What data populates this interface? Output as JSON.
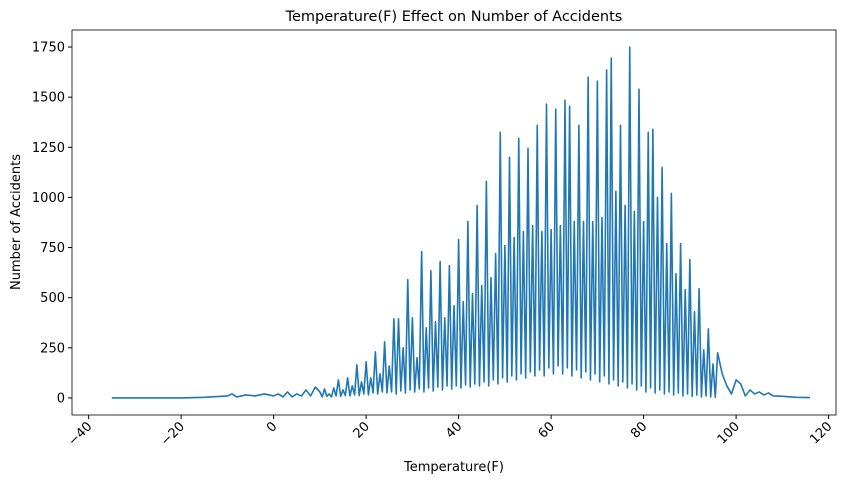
{
  "chart_data": {
    "type": "line",
    "title": "Temperature(F) Effect on Number of Accidents",
    "x_label": "Temperature(F)",
    "y_label": "Number of Accidents",
    "color": "#1f77b4",
    "xlim": [
      -43.6,
      121.6
    ],
    "ylim": [
      -85,
      1835
    ],
    "xticks": [
      {
        "value": -40,
        "label": "−40"
      },
      {
        "value": -20,
        "label": "−20"
      },
      0,
      20,
      40,
      60,
      80,
      100,
      120
    ],
    "yticks": [
      0,
      250,
      500,
      750,
      1000,
      1250,
      1500,
      1750
    ],
    "x": [
      -35,
      -20,
      -15,
      -10,
      -9,
      -8,
      -6,
      -4,
      -2,
      0,
      1,
      2,
      3,
      4,
      5,
      6,
      7,
      8,
      9,
      10,
      10.5,
      11,
      11.5,
      12,
      12.5,
      13,
      13.5,
      14,
      14.5,
      15,
      15.5,
      16,
      16.5,
      17,
      17.5,
      18,
      18.5,
      19,
      19.5,
      20,
      20.5,
      21,
      21.5,
      22,
      22.5,
      23,
      23.5,
      24,
      24.5,
      25,
      25.5,
      26,
      26.5,
      27,
      27.5,
      28,
      28.5,
      29,
      29.5,
      30,
      30.5,
      31,
      31.5,
      32,
      32.5,
      33,
      33.5,
      34,
      34.5,
      35,
      35.5,
      36,
      36.5,
      37,
      37.5,
      38,
      38.5,
      39,
      39.5,
      40,
      40.5,
      41,
      41.5,
      42,
      42.5,
      43,
      43.5,
      44,
      44.5,
      45,
      45.5,
      46,
      46.5,
      47,
      47.5,
      48,
      48.5,
      49,
      49.5,
      50,
      50.5,
      51,
      51.5,
      52,
      52.5,
      53,
      53.5,
      54,
      54.5,
      55,
      55.5,
      56,
      56.5,
      57,
      57.5,
      58,
      58.5,
      59,
      59.5,
      60,
      60.5,
      61,
      61.5,
      62,
      62.5,
      63,
      63.5,
      64,
      64.5,
      65,
      65.5,
      66,
      66.5,
      67,
      67.5,
      68,
      68.5,
      69,
      69.5,
      70,
      70.5,
      71,
      71.5,
      72,
      72.5,
      73,
      73.5,
      74,
      74.5,
      75,
      75.5,
      76,
      76.5,
      77,
      77.5,
      78,
      78.5,
      79,
      79.5,
      80,
      80.5,
      81,
      81.5,
      82,
      82.5,
      83,
      83.5,
      84,
      84.5,
      85,
      85.5,
      86,
      86.5,
      87,
      87.5,
      88,
      88.5,
      89,
      89.5,
      90,
      90.5,
      91,
      91.5,
      92,
      92.5,
      93,
      93.5,
      94,
      94.5,
      95,
      95.5,
      96,
      97,
      98,
      99,
      100,
      101,
      102,
      103,
      104,
      105,
      106,
      107,
      108,
      110,
      113,
      116
    ],
    "values": [
      0,
      0,
      3,
      10,
      20,
      5,
      15,
      10,
      20,
      10,
      20,
      5,
      30,
      5,
      20,
      10,
      40,
      10,
      55,
      30,
      5,
      45,
      8,
      20,
      5,
      50,
      10,
      90,
      8,
      40,
      12,
      100,
      10,
      60,
      15,
      165,
      12,
      80,
      20,
      180,
      15,
      100,
      25,
      230,
      20,
      120,
      30,
      280,
      25,
      160,
      30,
      395,
      20,
      395,
      35,
      250,
      25,
      590,
      40,
      400,
      30,
      200,
      45,
      730,
      30,
      350,
      50,
      635,
      35,
      380,
      55,
      680,
      40,
      400,
      60,
      660,
      45,
      460,
      60,
      790,
      50,
      480,
      65,
      880,
      55,
      520,
      70,
      960,
      60,
      560,
      80,
      1080,
      60,
      600,
      90,
      720,
      70,
      1325,
      100,
      760,
      80,
      1200,
      110,
      800,
      90,
      1295,
      120,
      830,
      100,
      1245,
      130,
      860,
      110,
      1360,
      140,
      830,
      110,
      1465,
      150,
      840,
      120,
      1440,
      160,
      860,
      120,
      1485,
      150,
      1455,
      110,
      880,
      140,
      1360,
      100,
      880,
      130,
      1600,
      90,
      880,
      120,
      1580,
      80,
      900,
      110,
      1635,
      70,
      1695,
      90,
      1030,
      60,
      1360,
      80,
      960,
      50,
      1750,
      70,
      930,
      40,
      1540,
      60,
      880,
      30,
      1325,
      50,
      1340,
      25,
      1000,
      40,
      1150,
      20,
      770,
      30,
      1020,
      15,
      620,
      25,
      770,
      10,
      540,
      20,
      690,
      8,
      430,
      15,
      545,
      5,
      240,
      10,
      345,
      5,
      170,
      3,
      225,
      120,
      60,
      20,
      90,
      70,
      10,
      40,
      20,
      30,
      15,
      25,
      10,
      8,
      3,
      2
    ]
  }
}
